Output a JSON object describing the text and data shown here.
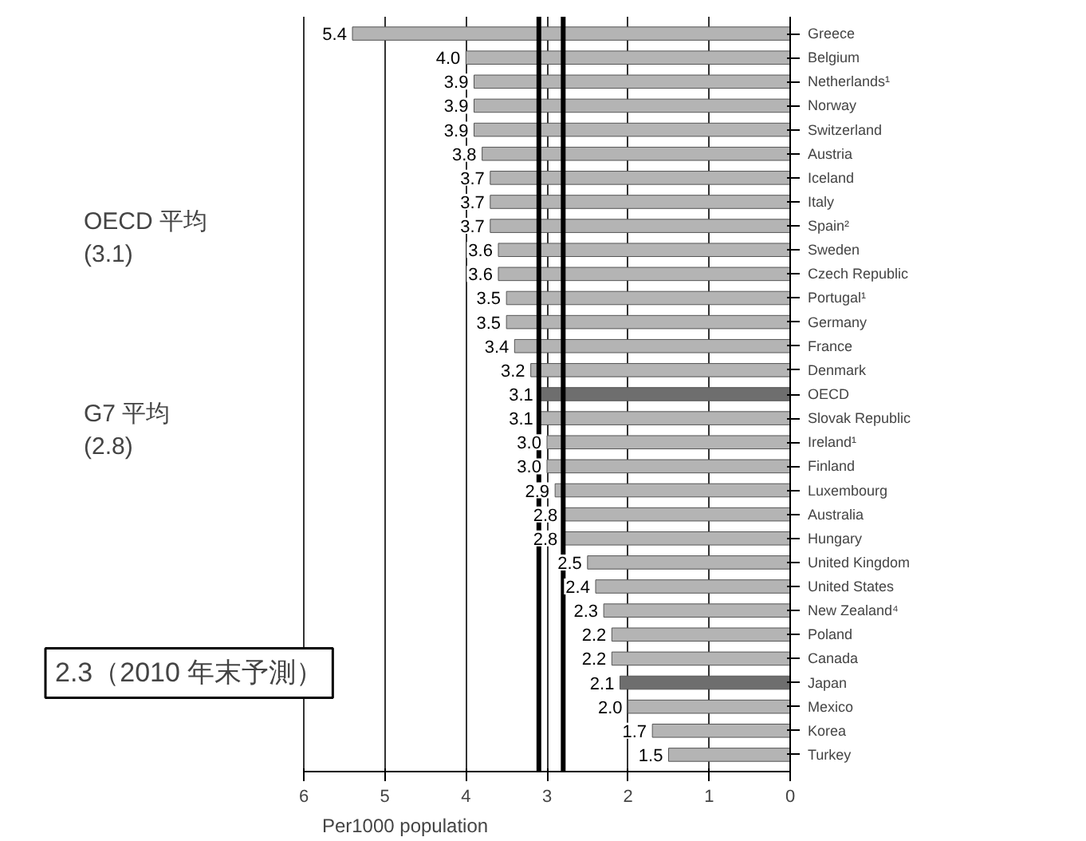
{
  "chart_data": {
    "type": "bar",
    "orientation": "horizontal",
    "xlabel": "Per1000    population",
    "categories": [
      "Greece",
      "Belgium",
      "Netherlands¹",
      "Norway",
      "Switzerland",
      "Austria",
      "Iceland",
      "Italy",
      "Spain²",
      "Sweden",
      "Czech Republic",
      "Portugal¹",
      "Germany",
      "France",
      "Denmark",
      "OECD",
      "Slovak Republic",
      "Ireland¹",
      "Finland",
      "Luxembourg",
      "Australia",
      "Hungary",
      "United Kingdom",
      "United States",
      "New Zealand⁴",
      "Poland",
      "Canada",
      "Japan",
      "Mexico",
      "Korea",
      "Turkey"
    ],
    "values": [
      5.4,
      4.0,
      3.9,
      3.9,
      3.9,
      3.8,
      3.7,
      3.7,
      3.7,
      3.6,
      3.6,
      3.5,
      3.5,
      3.4,
      3.2,
      3.1,
      3.1,
      3.0,
      3.0,
      2.9,
      2.8,
      2.8,
      2.5,
      2.4,
      2.3,
      2.2,
      2.2,
      2.1,
      2.0,
      1.7,
      1.5
    ],
    "colors": [
      "#b4b4b4",
      "#b4b4b4",
      "#b4b4b4",
      "#b4b4b4",
      "#b4b4b4",
      "#b4b4b4",
      "#b4b4b4",
      "#b4b4b4",
      "#b4b4b4",
      "#b4b4b4",
      "#b4b4b4",
      "#b4b4b4",
      "#b4b4b4",
      "#b4b4b4",
      "#b4b4b4",
      "#6e6e6e",
      "#b4b4b4",
      "#b4b4b4",
      "#b4b4b4",
      "#b4b4b4",
      "#b4b4b4",
      "#b4b4b4",
      "#b4b4b4",
      "#b4b4b4",
      "#b4b4b4",
      "#b4b4b4",
      "#b4b4b4",
      "#6e6e6e",
      "#b4b4b4",
      "#b4b4b4",
      "#b4b4b4"
    ],
    "value_labels": [
      "5.4",
      "4.0",
      "3.9",
      "3.9",
      "3.9",
      "3.8",
      "3.7",
      "3.7",
      "3.7",
      "3.6",
      "3.6",
      "3.5",
      "3.5",
      "3.4",
      "3.2",
      "3.1",
      "3.1",
      "3.0",
      "3.0",
      "2.9",
      "2.8",
      "2.8",
      "2.5",
      "2.4",
      "2.3",
      "2.2",
      "2.2",
      "2.1",
      "2.0",
      "1.7",
      "1.5"
    ],
    "xlim": [
      6,
      0
    ],
    "xticks": [
      6,
      5,
      4,
      3,
      2,
      1,
      0
    ],
    "grid": "x",
    "ref_lines": [
      {
        "axis": "x",
        "value": 3.1,
        "color": "#000000"
      },
      {
        "axis": "x",
        "value": 2.8,
        "color": "#000000"
      }
    ],
    "annotations": [
      "OECD 平均\n(3.1)",
      "G7 平均\n(2.8)",
      "2.3（2010 年末予測）"
    ]
  }
}
